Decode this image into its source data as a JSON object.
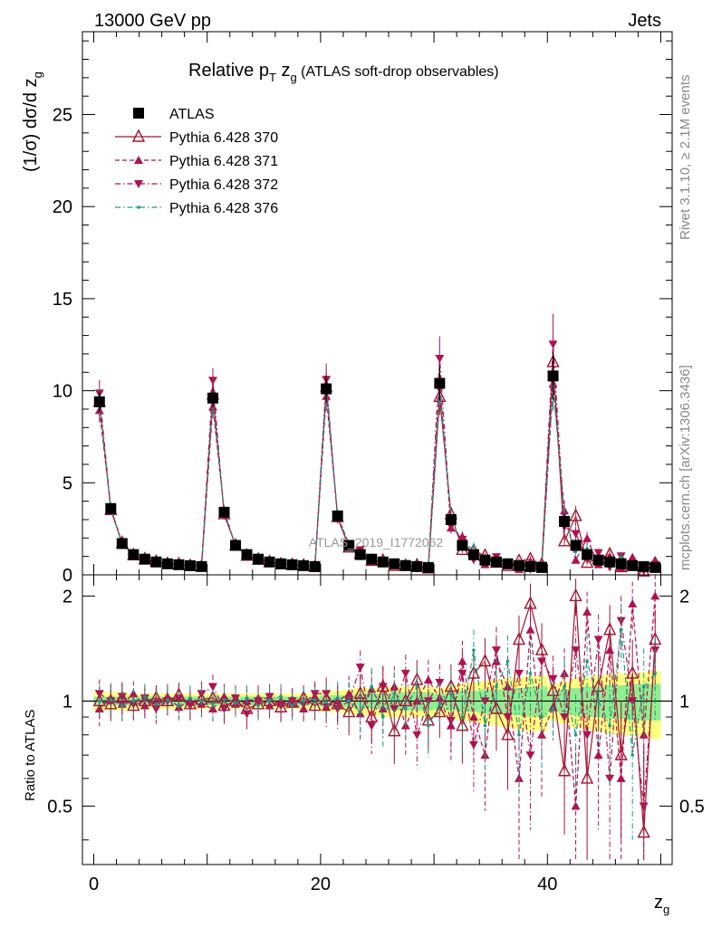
{
  "header": {
    "left": "13000 GeV pp",
    "right": "Jets"
  },
  "side_text": {
    "rivet": "Rivet 3.1.10, ≥ 2.1M events",
    "mcplots": "mcplots.cern.ch [arXiv:1306.3436]"
  },
  "watermark": "ATLAS_2019_I1772062",
  "chart_data": {
    "type": "scatter",
    "title": "Relative pT zg (ATLAS soft-drop observables)",
    "title_parts": {
      "main": "Relative p",
      "sub1": "T",
      "mid": " z",
      "sub2": "g",
      "tail": " (ATLAS soft-drop observables)"
    },
    "ylabel_parts": {
      "main": "(1/σ) dσ/d z",
      "sub": "g"
    },
    "xlabel_parts": {
      "main": "z",
      "sub": "g"
    },
    "ratio_ylabel": "Ratio to ATLAS",
    "xlim": [
      -1,
      51
    ],
    "ylim": [
      0,
      29.5
    ],
    "ratio_ylim": [
      0.34,
      2.3
    ],
    "x_ticks": [
      "0",
      "20",
      "40"
    ],
    "y_ticks": [
      "0",
      "5",
      "10",
      "15",
      "20",
      "25"
    ],
    "ratio_ticks": [
      "0.5",
      "1",
      "2"
    ],
    "legend": [
      {
        "name": "ATLAS",
        "color": "#000000",
        "marker": "square",
        "line": "none"
      },
      {
        "name": "Pythia 6.428 370",
        "color": "#a0152e",
        "marker": "triangle-open",
        "line": "solid"
      },
      {
        "name": "Pythia 6.428 371",
        "color": "#b0124f",
        "marker": "triangle-up",
        "line": "dashed"
      },
      {
        "name": "Pythia 6.428 372",
        "color": "#b0124f",
        "marker": "triangle-down",
        "line": "dashdot"
      },
      {
        "name": "Pythia 6.428 376",
        "color": "#1a9b85",
        "marker": "dot",
        "line": "dashdot"
      }
    ],
    "x": [
      0.5,
      1.5,
      2.5,
      3.5,
      4.5,
      5.5,
      6.5,
      7.5,
      8.5,
      9.5,
      10.5,
      11.5,
      12.5,
      13.5,
      14.5,
      15.5,
      16.5,
      17.5,
      18.5,
      19.5,
      20.5,
      21.5,
      22.5,
      23.5,
      24.5,
      25.5,
      26.5,
      27.5,
      28.5,
      29.5,
      30.5,
      31.5,
      32.5,
      33.5,
      34.5,
      35.5,
      36.5,
      37.5,
      38.5,
      39.5,
      40.5,
      41.5,
      42.5,
      43.5,
      44.5,
      45.5,
      46.5,
      47.5,
      48.5,
      49.5
    ],
    "data": {
      "name": "ATLAS",
      "values": [
        9.4,
        3.6,
        1.7,
        1.1,
        0.85,
        0.7,
        0.6,
        0.55,
        0.5,
        0.45,
        9.6,
        3.4,
        1.6,
        1.1,
        0.85,
        0.7,
        0.6,
        0.55,
        0.5,
        0.45,
        10.1,
        3.2,
        1.6,
        1.1,
        0.85,
        0.7,
        0.6,
        0.5,
        0.45,
        0.4,
        10.4,
        3.0,
        1.6,
        1.1,
        0.8,
        0.7,
        0.6,
        0.5,
        0.45,
        0.4,
        10.8,
        2.9,
        1.6,
        1.1,
        0.8,
        0.7,
        0.6,
        0.5,
        0.45,
        0.4
      ],
      "rel_err_inner": [
        0.03,
        0.03,
        0.03,
        0.03,
        0.03,
        0.03,
        0.03,
        0.03,
        0.03,
        0.03,
        0.03,
        0.03,
        0.03,
        0.03,
        0.03,
        0.03,
        0.03,
        0.03,
        0.03,
        0.03,
        0.04,
        0.04,
        0.04,
        0.05,
        0.05,
        0.05,
        0.06,
        0.06,
        0.06,
        0.06,
        0.05,
        0.06,
        0.07,
        0.07,
        0.08,
        0.08,
        0.09,
        0.09,
        0.1,
        0.1,
        0.07,
        0.08,
        0.09,
        0.1,
        0.1,
        0.11,
        0.11,
        0.12,
        0.12,
        0.12
      ],
      "rel_err_outer": [
        0.06,
        0.06,
        0.06,
        0.05,
        0.05,
        0.05,
        0.05,
        0.05,
        0.05,
        0.05,
        0.05,
        0.05,
        0.05,
        0.05,
        0.05,
        0.05,
        0.05,
        0.05,
        0.05,
        0.05,
        0.07,
        0.07,
        0.08,
        0.09,
        0.09,
        0.1,
        0.1,
        0.1,
        0.1,
        0.1,
        0.09,
        0.11,
        0.12,
        0.13,
        0.14,
        0.15,
        0.16,
        0.17,
        0.18,
        0.18,
        0.12,
        0.14,
        0.16,
        0.17,
        0.18,
        0.19,
        0.2,
        0.2,
        0.21,
        0.22
      ]
    },
    "series": [
      {
        "name": "Pythia 6.428 370",
        "ratio": [
          1.0,
          0.98,
          1.02,
          0.97,
          1.0,
          1.02,
          1.0,
          1.04,
          0.98,
          1.01,
          1.02,
          0.97,
          1.0,
          0.95,
          0.98,
          1.0,
          0.96,
          0.99,
          1.02,
          0.97,
          1.01,
          0.98,
          0.93,
          1.05,
          0.9,
          1.1,
          0.82,
          1.0,
          1.15,
          0.88,
          0.93,
          1.1,
          0.85,
          1.2,
          1.3,
          0.95,
          0.8,
          1.5,
          1.9,
          1.4,
          1.07,
          0.63,
          2.0,
          0.6,
          1.1,
          1.6,
          0.7,
          1.2,
          0.42,
          1.5
        ]
      },
      {
        "name": "Pythia 6.428 371",
        "ratio": [
          0.95,
          1.02,
          0.98,
          1.05,
          0.97,
          1.0,
          1.03,
          0.96,
          1.0,
          0.98,
          0.95,
          1.03,
          0.98,
          1.0,
          1.02,
          0.97,
          1.0,
          0.98,
          0.95,
          1.03,
          0.96,
          1.0,
          1.05,
          0.92,
          1.08,
          0.95,
          1.1,
          0.85,
          1.0,
          1.15,
          1.02,
          0.85,
          1.3,
          0.9,
          0.7,
          1.3,
          1.1,
          0.6,
          1.6,
          0.8,
          0.96,
          1.2,
          0.5,
          1.8,
          0.7,
          1.4,
          0.6,
          1.9,
          0.8,
          2.0
        ]
      },
      {
        "name": "Pythia 6.428 372",
        "ratio": [
          1.05,
          1.0,
          1.03,
          0.98,
          1.02,
          0.95,
          1.0,
          1.02,
          0.97,
          1.05,
          1.1,
          0.95,
          1.02,
          0.92,
          1.0,
          1.03,
          0.97,
          1.0,
          0.98,
          1.05,
          1.05,
          0.95,
          1.0,
          1.25,
          0.85,
          1.1,
          0.95,
          1.2,
          0.8,
          1.0,
          1.13,
          0.88,
          1.2,
          0.75,
          1.0,
          1.4,
          0.9,
          1.2,
          0.7,
          1.3,
          1.16,
          0.9,
          1.4,
          0.8,
          1.5,
          0.6,
          1.7,
          1.0,
          0.5,
          1.4
        ]
      },
      {
        "name": "Pythia 6.428 376",
        "ratio": [
          1.0,
          1.01,
          0.97,
          1.0,
          1.03,
          0.98,
          1.01,
          0.97,
          1.02,
          1.0,
          0.98,
          1.01,
          0.99,
          1.02,
          0.97,
          1.01,
          1.03,
          0.97,
          1.0,
          1.01,
          0.99,
          1.02,
          1.0,
          0.93,
          1.1,
          0.9,
          1.05,
          0.95,
          1.1,
          0.85,
          0.98,
          1.05,
          0.9,
          1.4,
          0.85,
          1.1,
          1.3,
          0.8,
          1.2,
          0.9,
          0.95,
          1.1,
          0.8,
          1.3,
          1.0,
          0.85,
          1.6,
          0.7,
          1.1,
          1.2
        ]
      }
    ]
  }
}
